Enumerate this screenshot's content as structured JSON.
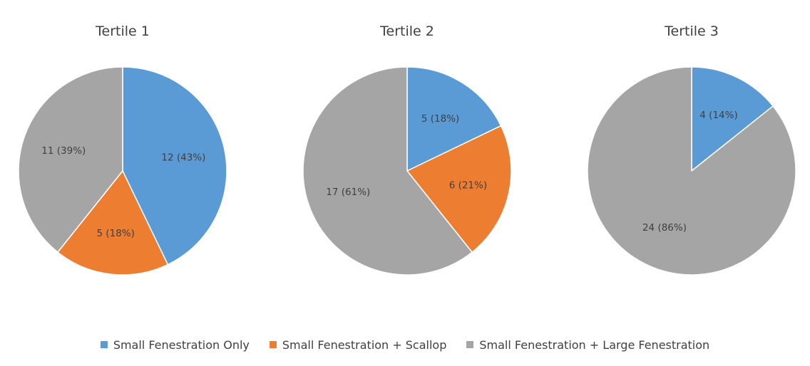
{
  "chart_data": [
    {
      "type": "pie",
      "title": "Tertile 1",
      "categories": [
        "Small Fenestration Only",
        "Small Fenestration + Scallop",
        "Small Fenestration + Large Fenestration"
      ],
      "values": [
        12,
        5,
        11
      ],
      "labels": [
        "12 (43%)",
        "5 (18%)",
        "11 (39%)"
      ]
    },
    {
      "type": "pie",
      "title": "Tertile 2",
      "categories": [
        "Small Fenestration Only",
        "Small Fenestration + Scallop",
        "Small Fenestration + Large Fenestration"
      ],
      "values": [
        5,
        6,
        17
      ],
      "labels": [
        "5 (18%)",
        "6 (21%)",
        "17 (61%)"
      ]
    },
    {
      "type": "pie",
      "title": "Tertile 3",
      "categories": [
        "Small Fenestration Only",
        "Small Fenestration + Scallop",
        "Small Fenestration + Large Fenestration"
      ],
      "values": [
        4,
        0,
        24
      ],
      "labels": [
        "4 (14%)",
        "",
        "24 (86%)"
      ]
    }
  ],
  "legend": [
    {
      "label": "Small Fenestration Only",
      "color": "#5b9bd5"
    },
    {
      "label": "Small Fenestration + Scallop",
      "color": "#ed7d31"
    },
    {
      "label": "Small Fenestration + Large Fenestration",
      "color": "#a5a5a5"
    }
  ]
}
